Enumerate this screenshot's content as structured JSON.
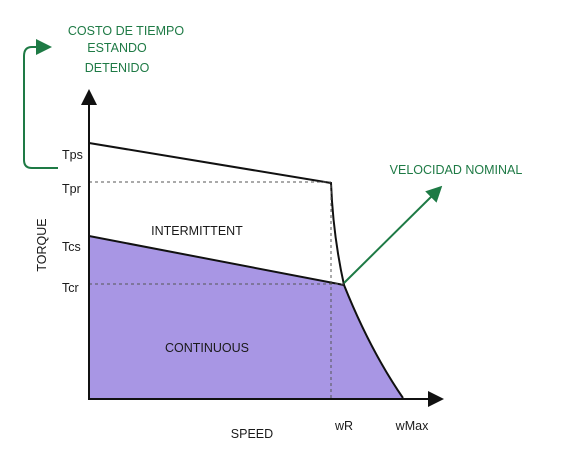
{
  "annotations": {
    "stall_cost_line1": "COSTO DE TIEMPO",
    "stall_cost_line2": "ESTANDO",
    "stall_cost_line3": "DETENIDO",
    "rated_speed": "VELOCIDAD NOMINAL"
  },
  "axes": {
    "x_label": "SPEED",
    "y_label": "TORQUE"
  },
  "y_ticks": {
    "tps": "Tps",
    "tpr": "Tpr",
    "tcs": "Tcs",
    "tcr": "Tcr"
  },
  "x_ticks": {
    "wr": "wR",
    "wmax": "wMax"
  },
  "regions": {
    "intermittent": "INTERMITTENT",
    "continuous": "CONTINUOUS"
  },
  "colors": {
    "continuous_fill": "#a896e4",
    "accent_green": "#1e7a45",
    "axis": "#111111"
  }
}
